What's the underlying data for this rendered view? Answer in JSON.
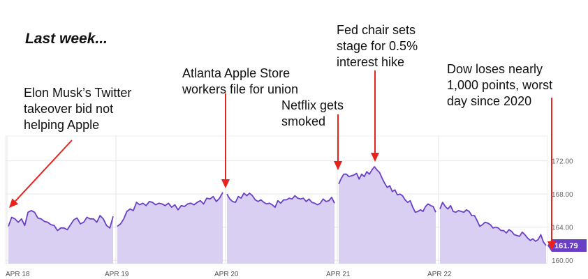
{
  "heading": "Last week...",
  "annotations": [
    {
      "lines": [
        "Elon Musk’s Twitter",
        "takeover bid not",
        "helping Apple"
      ],
      "x": "Apr 18",
      "y": 164.8
    },
    {
      "lines": [
        "Atlanta Apple Store",
        "workers file for union"
      ],
      "x": "Apr 20",
      "y": 168.6
    },
    {
      "lines": [
        "Netflix gets",
        "smoked"
      ],
      "x": "Apr 21",
      "y": 170.9
    },
    {
      "lines": [
        "Fed chair sets",
        "stage for 0.5%",
        "interest hike"
      ],
      "x": "Apr 21 (midday)",
      "y": 171.5
    },
    {
      "lines": [
        "Dow loses nearly",
        "1,000 points, worst",
        "day since 2020"
      ],
      "x": "Apr 22 (close)",
      "y": 162.8
    }
  ],
  "colors": {
    "line": "#6A3FC6",
    "fill": "#D9CFF3",
    "arrow": "#E8231E",
    "grid": "#E6E6E6",
    "last_badge": "#6A3FC6"
  },
  "chart_data": {
    "type": "area",
    "x_ticks": [
      "APR 18",
      "APR 19",
      "APR 20",
      "APR 21",
      "APR 22"
    ],
    "y_ticks": [
      "160.00",
      "164.00",
      "168.00",
      "172.00"
    ],
    "ylim": [
      159.6,
      175.0
    ],
    "last_value_label": "161.79",
    "grid": true,
    "days": [
      {
        "label": "Apr 18",
        "values": [
          164.1,
          165.2,
          165.0,
          164.6,
          165.0,
          164.2,
          165.8,
          166.0,
          165.8,
          165.1,
          165.0,
          164.7,
          164.6,
          164.3,
          164.2,
          163.6,
          163.9,
          163.9,
          163.7,
          164.3,
          164.9,
          165.1,
          164.4,
          164.6,
          165.2,
          165.0,
          165.0,
          164.6,
          165.4,
          165.0,
          164.2,
          163.9,
          165.3
        ]
      },
      {
        "label": "Apr 19",
        "values": [
          164.1,
          164.4,
          165.0,
          165.9,
          166.2,
          166.0,
          167.0,
          166.7,
          166.9,
          166.6,
          167.1,
          167.0,
          166.7,
          166.9,
          166.8,
          166.6,
          166.9,
          166.4,
          166.7,
          166.1,
          166.6,
          166.5,
          166.8,
          166.9,
          166.7,
          167.0,
          167.2,
          166.8,
          167.5,
          167.4,
          167.7,
          167.1,
          167.5,
          168.2
        ]
      },
      {
        "label": "Apr 20",
        "values": [
          168.0,
          167.4,
          167.1,
          167.0,
          167.7,
          167.5,
          168.1,
          167.8,
          168.1,
          167.8,
          167.3,
          167.1,
          167.3,
          167.0,
          166.8,
          166.9,
          166.7,
          166.4,
          167.2,
          166.9,
          167.3,
          167.3,
          167.5,
          167.4,
          167.8,
          167.5,
          167.4,
          167.5,
          167.1,
          167.4,
          167.0,
          166.9,
          166.7,
          166.9,
          167.4,
          167.1,
          167.2,
          167.6,
          166.9
        ]
      },
      {
        "label": "Apr 21",
        "values": [
          169.2,
          169.9,
          170.4,
          170.4,
          170.1,
          170.2,
          170.3,
          170.5,
          169.8,
          170.4,
          170.1,
          170.7,
          170.4,
          170.9,
          171.3,
          170.9,
          170.6,
          169.9,
          169.3,
          168.8,
          169.0,
          168.3,
          168.5,
          167.9,
          168.0,
          167.8,
          167.3,
          167.0,
          167.2,
          166.4,
          165.8,
          165.9,
          166.1,
          165.9,
          166.5,
          166.8,
          166.6,
          166.5,
          165.8
        ]
      },
      {
        "label": "Apr 22",
        "values": [
          166.2,
          167.0,
          166.5,
          166.2,
          166.6,
          165.9,
          165.8,
          166.0,
          165.9,
          165.8,
          166.1,
          165.9,
          165.4,
          165.4,
          164.8,
          164.1,
          164.3,
          164.6,
          164.5,
          164.3,
          163.9,
          164.0,
          163.9,
          163.6,
          163.6,
          163.3,
          163.7,
          163.5,
          163.1,
          163.0,
          162.9,
          163.4,
          163.1,
          162.7,
          162.4,
          162.6,
          162.3,
          162.5,
          163.1,
          162.2,
          161.8
        ]
      }
    ]
  }
}
